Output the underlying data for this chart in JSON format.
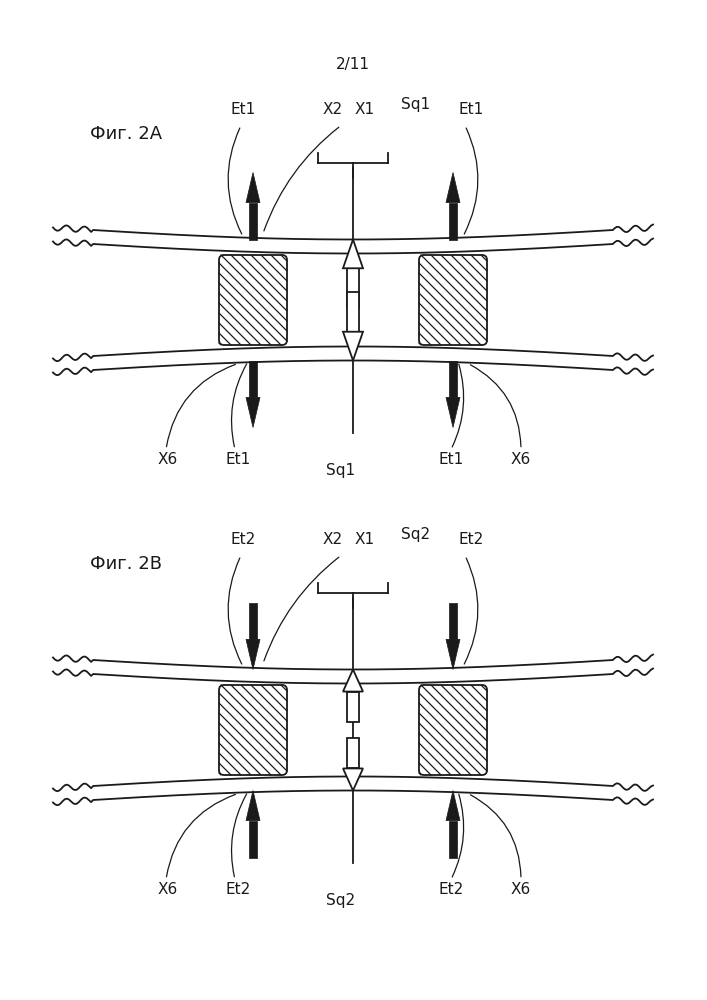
{
  "title": "2/11",
  "fig_label_A": "Фиг. 2A",
  "fig_label_B": "Фиг. 2B",
  "bg_color": "#ffffff",
  "line_color": "#1a1a1a",
  "figsize": [
    7.07,
    10.0
  ],
  "dpi": 100
}
